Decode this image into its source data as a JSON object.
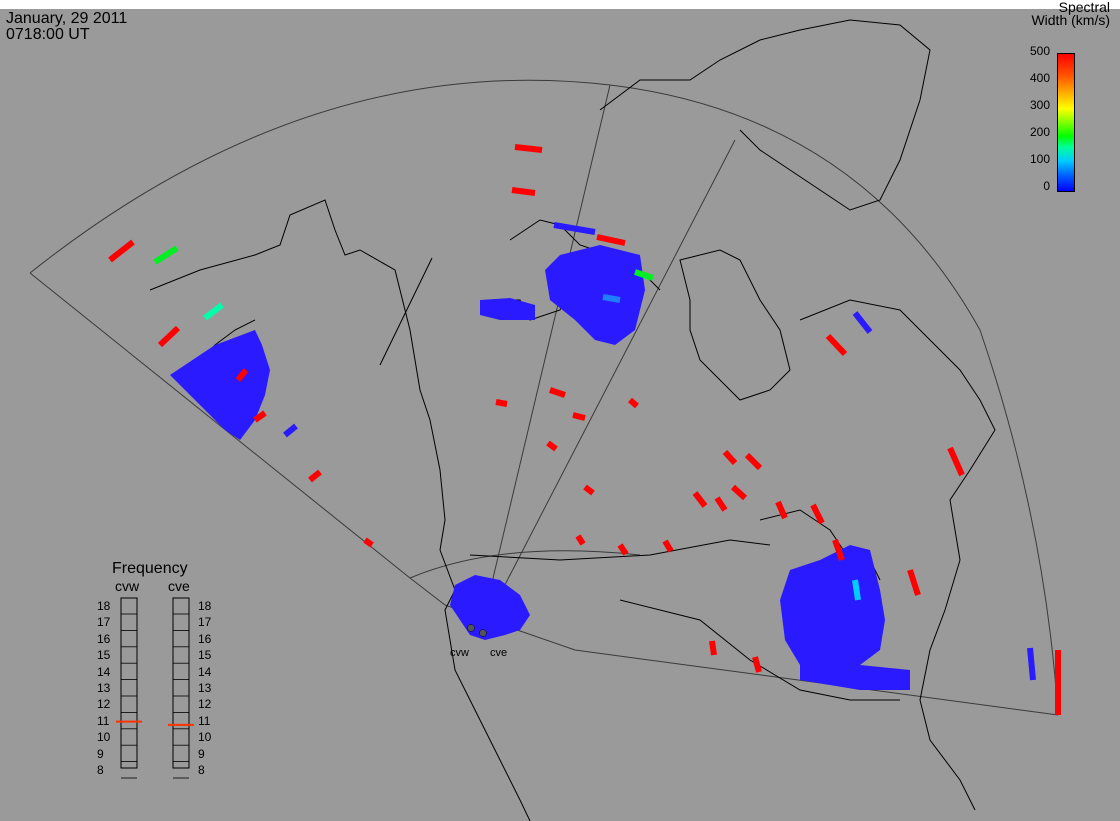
{
  "header": {
    "date": "January, 29 2011",
    "time": "0718:00 UT"
  },
  "colorbar": {
    "title_line1": "Spectral",
    "title_line2": "Width (km/s)",
    "ticks": [
      "500",
      "400",
      "300",
      "200",
      "100",
      "0"
    ]
  },
  "frequency": {
    "title": "Frequency",
    "radars": [
      "cvw",
      "cve"
    ],
    "levels": [
      "18",
      "17",
      "16",
      "15",
      "14",
      "13",
      "12",
      "11",
      "10",
      "9",
      "8"
    ],
    "cvw_value": 10.95,
    "cve_value": 10.75
  },
  "sites": {
    "west": "cvw",
    "east": "cve"
  },
  "colors": {
    "background": "#9a9a9a",
    "low": "#2a1aff",
    "high": "#ff0000",
    "fov": "#404040",
    "coast": "#000000"
  }
}
